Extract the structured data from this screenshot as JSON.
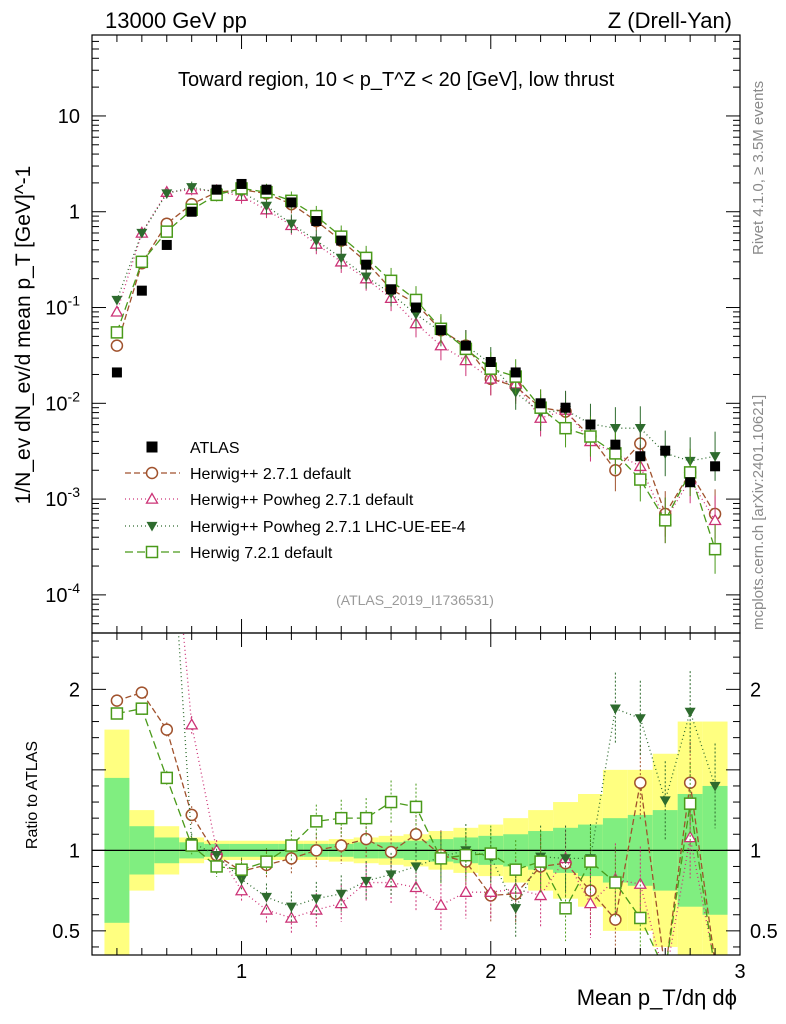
{
  "header": {
    "left": "13000 GeV pp",
    "right": "Z (Drell-Yan)"
  },
  "side_text": {
    "top": "Rivet 4.1.0, ≥ 3.5M events",
    "bottom": "mcplots.cern.ch [arXiv:2401.10621]"
  },
  "chart_data": {
    "type": "line",
    "title": "Toward region, 10 < p_T^Z < 20 [GeV], low thrust",
    "analysis_id": "(ATLAS_2019_I1736531)",
    "xlabel": "Mean p_T/dη dϕ",
    "ylabel": "1/N_ev dN_ev/d mean p_T [GeV]^-1",
    "ratio_ylabel": "Ratio to ATLAS",
    "xlim": [
      0.4,
      3.0
    ],
    "ylim": [
      4e-05,
      70
    ],
    "yscale": "log",
    "ratio_ylim": [
      0.35,
      2.35
    ],
    "x_ticks": [
      "1",
      "2",
      "3"
    ],
    "y_ticks": [
      "10^-4",
      "10^-3",
      "10^-2",
      "10^-1",
      "1",
      "10"
    ],
    "ratio_ticks": [
      "0.5",
      "1",
      "2"
    ],
    "legend_position": "lower-left",
    "x": [
      0.5,
      0.6,
      0.7,
      0.8,
      0.9,
      1.0,
      1.1,
      1.2,
      1.3,
      1.4,
      1.5,
      1.6,
      1.7,
      1.8,
      1.9,
      2.0,
      2.1,
      2.2,
      2.3,
      2.4,
      2.5,
      2.6,
      2.7,
      2.8,
      2.9
    ],
    "data": {
      "name": "ATLAS",
      "values": [
        0.021,
        0.15,
        0.45,
        1.0,
        1.7,
        1.95,
        1.7,
        1.25,
        0.8,
        0.5,
        0.28,
        0.155,
        0.1,
        0.058,
        0.04,
        0.027,
        0.021,
        0.01,
        0.009,
        0.006,
        0.0037,
        0.0028,
        0.0032,
        0.0015,
        0.0022
      ],
      "band_inner": [
        0.45,
        0.15,
        0.08,
        0.05,
        0.04,
        0.04,
        0.04,
        0.04,
        0.04,
        0.04,
        0.05,
        0.05,
        0.06,
        0.07,
        0.08,
        0.09,
        0.1,
        0.12,
        0.14,
        0.16,
        0.2,
        0.22,
        0.25,
        0.35,
        0.4
      ],
      "band_outer": [
        0.75,
        0.25,
        0.15,
        0.08,
        0.06,
        0.06,
        0.06,
        0.06,
        0.06,
        0.07,
        0.08,
        0.09,
        0.1,
        0.12,
        0.14,
        0.16,
        0.2,
        0.25,
        0.3,
        0.35,
        0.5,
        0.5,
        0.6,
        0.8,
        0.8
      ]
    },
    "series": [
      {
        "name": "Herwig++ 2.7.1 default",
        "color": "#a0522d",
        "marker": "circle-open",
        "dash": "6,3",
        "values": [
          0.04,
          0.29,
          0.75,
          1.2,
          1.6,
          1.7,
          1.55,
          1.2,
          0.8,
          0.5,
          0.3,
          0.155,
          0.11,
          0.058,
          0.04,
          0.018,
          0.015,
          0.009,
          0.0082,
          0.0045,
          0.002,
          0.0038,
          0.0007,
          0.0019,
          0.0007
        ]
      },
      {
        "name": "Herwig++ Powheg 2.7.1 default",
        "color": "#cc3377",
        "marker": "triangle-open",
        "dash": "1,3",
        "values": [
          0.09,
          0.6,
          1.6,
          1.7,
          1.65,
          1.45,
          1.05,
          0.72,
          0.46,
          0.3,
          0.2,
          0.125,
          0.068,
          0.04,
          0.028,
          0.018,
          0.016,
          0.007,
          0.0085,
          0.004,
          0.003,
          0.0022,
          0.0006,
          0.0016,
          0.0006
        ]
      },
      {
        "name": "Herwig++ Powheg 2.7.1 LHC-UE-EE-4",
        "color": "#2e6b2e",
        "marker": "triangle-down-filled",
        "dash": "1,3",
        "values": [
          0.12,
          0.6,
          1.55,
          1.8,
          1.6,
          1.6,
          1.15,
          0.75,
          0.5,
          0.33,
          0.21,
          0.14,
          0.085,
          0.056,
          0.04,
          0.026,
          0.013,
          0.008,
          0.0085,
          0.0061,
          0.0055,
          0.0055,
          0.003,
          0.0025,
          0.0028
        ]
      },
      {
        "name": "Herwig 7.2.1 default",
        "color": "#4a9a1a",
        "marker": "square-open",
        "dash": "8,4",
        "values": [
          0.055,
          0.3,
          0.62,
          1.05,
          1.5,
          1.75,
          1.6,
          1.3,
          0.9,
          0.55,
          0.33,
          0.19,
          0.12,
          0.06,
          0.037,
          0.023,
          0.019,
          0.009,
          0.0055,
          0.0045,
          0.003,
          0.0016,
          0.0006,
          0.0019,
          0.0003
        ]
      }
    ],
    "ratio_series": [
      {
        "name": "Herwig++ 2.7.1 default",
        "values": [
          1.93,
          1.98,
          1.75,
          1.22,
          0.97,
          0.87,
          0.91,
          0.95,
          1.0,
          1.03,
          1.07,
          0.99,
          1.1,
          0.97,
          0.93,
          0.72,
          0.73,
          0.9,
          0.92,
          0.75,
          0.57,
          1.42,
          0.25,
          1.42,
          0.3
        ]
      },
      {
        "name": "Herwig++ Powheg 2.7.1 default",
        "values": [
          4.0,
          4.0,
          3.5,
          1.78,
          1.0,
          0.75,
          0.63,
          0.58,
          0.63,
          0.67,
          0.8,
          0.8,
          0.77,
          0.66,
          0.74,
          0.74,
          0.76,
          0.72,
          0.95,
          0.67,
          0.82,
          0.79,
          0.2,
          1.08,
          0.28
        ]
      },
      {
        "name": "Herwig++ Powheg 2.7.1 LHC-UE-EE-4",
        "values": [
          5.0,
          4.0,
          3.5,
          1.05,
          0.97,
          0.82,
          0.71,
          0.65,
          0.7,
          0.73,
          0.81,
          0.85,
          0.9,
          0.96,
          1.0,
          0.96,
          0.64,
          0.96,
          0.95,
          0.95,
          1.88,
          1.82,
          1.31,
          1.86,
          1.4
        ]
      },
      {
        "name": "Herwig 7.2.1 default",
        "values": [
          1.85,
          1.88,
          1.45,
          1.03,
          0.9,
          0.88,
          0.93,
          1.03,
          1.18,
          1.2,
          1.2,
          1.3,
          1.27,
          0.95,
          0.97,
          0.98,
          0.88,
          0.93,
          0.64,
          0.93,
          0.8,
          0.58,
          0.25,
          1.29,
          0.25
        ]
      }
    ]
  }
}
